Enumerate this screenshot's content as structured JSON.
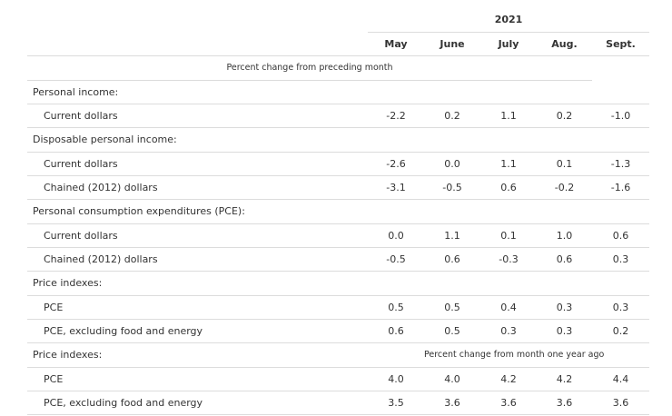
{
  "header": {
    "year": "2021",
    "months": [
      "May",
      "June",
      "July",
      "Aug.",
      "Sept."
    ],
    "subtitle": "Percent change from preceding month"
  },
  "rows": [
    {
      "label": "Personal income:"
    },
    {
      "label": "Current dollars",
      "values": [
        "-2.2",
        "0.2",
        "1.1",
        "0.2",
        "-1.0"
      ]
    },
    {
      "label": "Disposable personal income:"
    },
    {
      "label": "Current dollars",
      "values": [
        "-2.6",
        "0.0",
        "1.1",
        "0.1",
        "-1.3"
      ]
    },
    {
      "label": "Chained (2012) dollars",
      "values": [
        "-3.1",
        "-0.5",
        "0.6",
        "-0.2",
        "-1.6"
      ]
    },
    {
      "label": "Personal consumption expenditures (PCE):"
    },
    {
      "label": "Current dollars",
      "values": [
        "0.0",
        "1.1",
        "0.1",
        "1.0",
        "0.6"
      ]
    },
    {
      "label": "Chained (2012) dollars",
      "values": [
        "-0.5",
        "0.6",
        "-0.3",
        "0.6",
        "0.3"
      ]
    },
    {
      "label": "Price indexes:"
    },
    {
      "label": "PCE",
      "values": [
        "0.5",
        "0.5",
        "0.4",
        "0.3",
        "0.3"
      ]
    },
    {
      "label": "PCE, excluding food and energy",
      "values": [
        "0.6",
        "0.5",
        "0.3",
        "0.3",
        "0.2"
      ]
    },
    {
      "label": "Price indexes:",
      "note": "Percent change from month one year ago"
    },
    {
      "label": "PCE",
      "values": [
        "4.0",
        "4.0",
        "4.2",
        "4.2",
        "4.4"
      ]
    },
    {
      "label": "PCE, excluding food and energy",
      "values": [
        "3.5",
        "3.6",
        "3.6",
        "3.6",
        "3.6"
      ]
    }
  ]
}
